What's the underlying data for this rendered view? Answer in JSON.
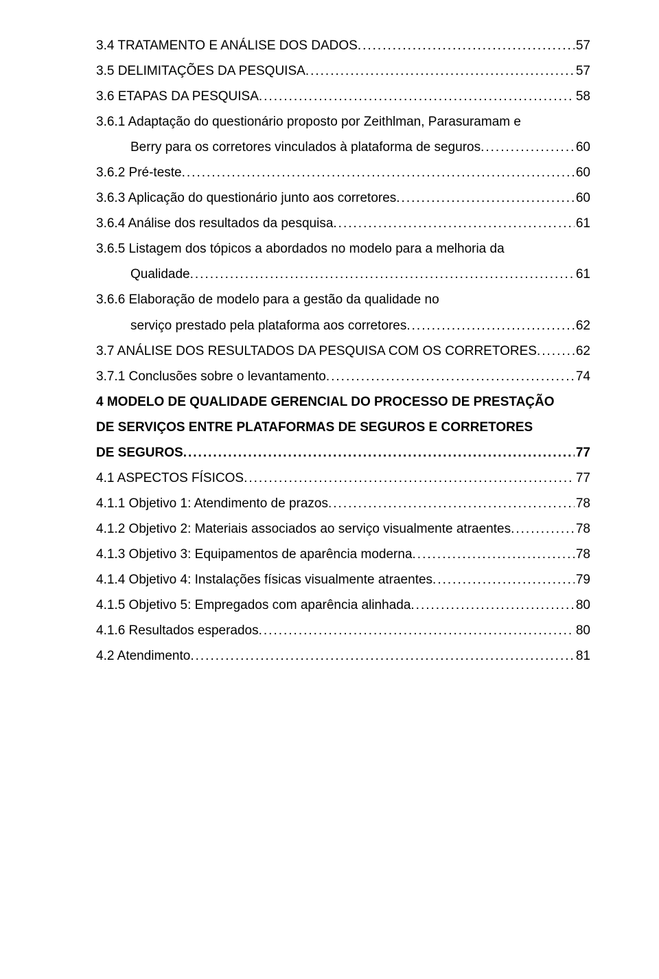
{
  "entries": [
    {
      "label": "3.4 TRATAMENTO E ANÁLISE DOS DADOS",
      "page": "57",
      "indent": 0,
      "bold": false
    },
    {
      "label": "3.5 DELIMITAÇÕES DA PESQUISA",
      "page": "57",
      "indent": 0,
      "bold": false
    },
    {
      "label": "3.6 ETAPAS DA PESQUISA",
      "page": "58",
      "indent": 0,
      "bold": false
    },
    {
      "label_line1": "3.6.1 Adaptação do questionário proposto por Zeithlman, Parasuramam e",
      "label_line2": "Berry para os corretores vinculados à plataforma de seguros",
      "page": "60",
      "indent": 0,
      "bold": false,
      "multi": true
    },
    {
      "label": "3.6.2 Pré-teste",
      "page": "60",
      "indent": 0,
      "bold": false
    },
    {
      "label": "3.6.3 Aplicação do questionário junto aos corretores",
      "page": "60",
      "indent": 0,
      "bold": false
    },
    {
      "label": "3.6.4 Análise dos resultados da pesquisa",
      "page": "61",
      "indent": 0,
      "bold": false
    },
    {
      "label_line1": "3.6.5 Listagem dos tópicos a abordados no modelo para a melhoria da",
      "label_line2": "Qualidade",
      "page": "61",
      "indent": 0,
      "bold": false,
      "multi": true
    },
    {
      "label_line1": "3.6.6 Elaboração de modelo para a gestão da qualidade no",
      "label_line2": "serviço prestado pela plataforma aos corretores",
      "page": "62",
      "indent": 0,
      "bold": false,
      "multi": true
    },
    {
      "label": "3.7 ANÁLISE DOS RESULTADOS DA PESQUISA COM OS CORRETORES",
      "page": "62",
      "indent": 0,
      "bold": false
    },
    {
      "label": "3.7.1 Conclusões sobre o levantamento",
      "page": "74",
      "indent": 0,
      "bold": false
    },
    {
      "label_line1": "4 MODELO DE QUALIDADE GERENCIAL DO PROCESSO DE PRESTAÇÃO",
      "label_line2_pre": "DE SERVIÇOS ENTRE PLATAFORMAS DE SEGUROS E CORRETORES",
      "label_line3": "DE SEGUROS",
      "page": "77",
      "indent": 0,
      "bold": true,
      "triple": true
    },
    {
      "label": "4.1 ASPECTOS FÍSICOS",
      "page": "77",
      "indent": 0,
      "bold": false
    },
    {
      "label": "4.1.1 Objetivo 1: Atendimento de prazos",
      "page": "78",
      "indent": 0,
      "bold": false
    },
    {
      "label": "4.1.2 Objetivo 2: Materiais associados ao serviço visualmente atraentes",
      "page": "78",
      "indent": 0,
      "bold": false
    },
    {
      "label": "4.1.3 Objetivo 3: Equipamentos de aparência moderna",
      "page": "78",
      "indent": 0,
      "bold": false
    },
    {
      "label": "4.1.4 Objetivo 4: Instalações físicas visualmente atraentes",
      "page": "79",
      "indent": 0,
      "bold": false
    },
    {
      "label": "4.1.5 Objetivo 5: Empregados com aparência alinhada",
      "page": "80",
      "indent": 0,
      "bold": false
    },
    {
      "label": "4.1.6 Resultados esperados",
      "page": "80",
      "indent": 0,
      "bold": false
    },
    {
      "label": "4.2 Atendimento",
      "page": "81",
      "indent": 0,
      "bold": false
    }
  ]
}
